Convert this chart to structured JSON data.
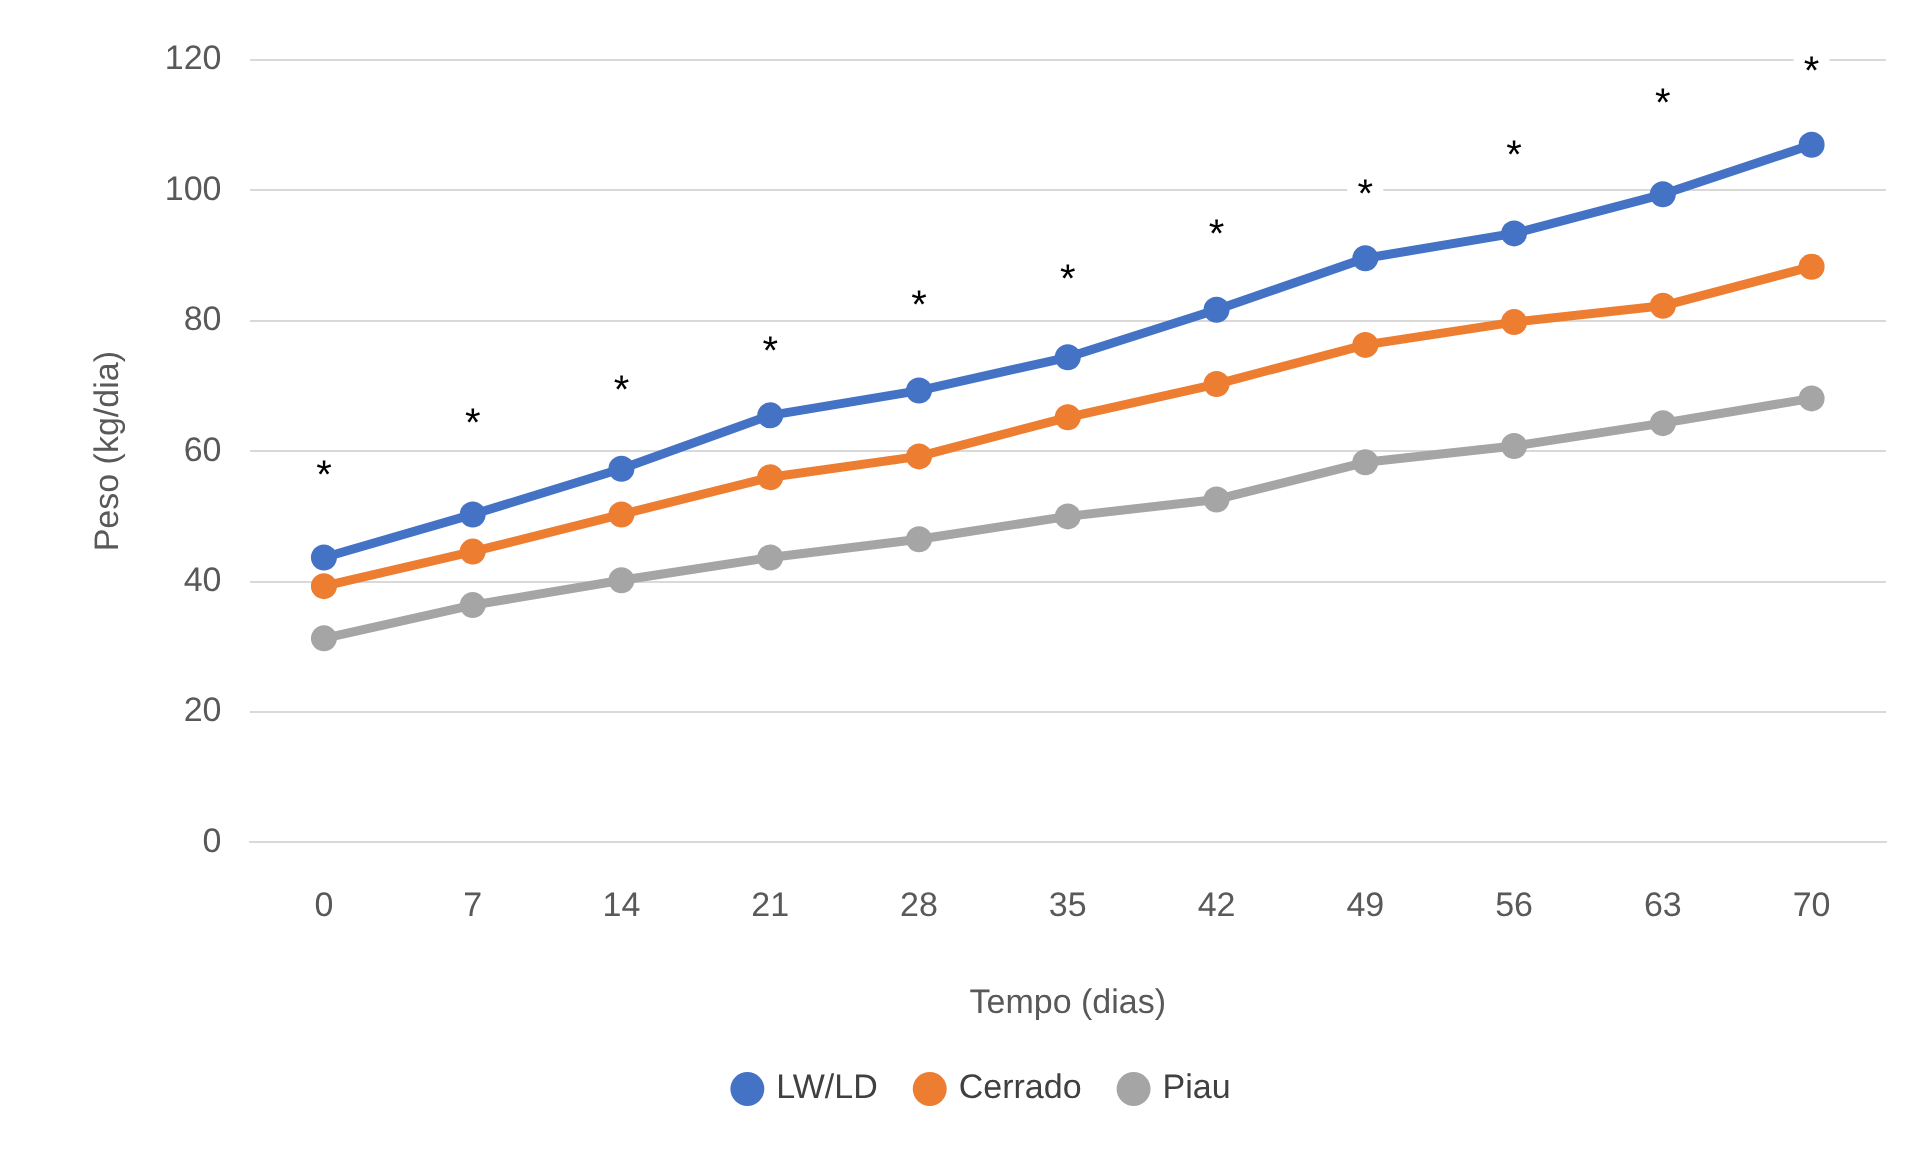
{
  "chart_data": {
    "type": "line",
    "xlabel": "Tempo (dias)",
    "ylabel": "Peso (kg/dia)",
    "categories": [
      "0",
      "7",
      "14",
      "21",
      "28",
      "35",
      "42",
      "49",
      "56",
      "63",
      "70"
    ],
    "series": [
      {
        "name": "LW/LD",
        "color": "#4472c4",
        "values": [
          43.7,
          50.3,
          57.3,
          65.5,
          69.3,
          74.4,
          81.7,
          89.6,
          93.4,
          99.4,
          107
        ]
      },
      {
        "name": "Cerrado",
        "color": "#ed7d31",
        "values": [
          39.3,
          44.6,
          50.3,
          56,
          59.2,
          65.2,
          70.3,
          76.3,
          79.8,
          82.3,
          88.3
        ]
      },
      {
        "name": "Piau",
        "color": "#a5a5a5",
        "values": [
          31.3,
          36.4,
          40.2,
          43.7,
          46.5,
          50,
          52.6,
          58.3,
          60.8,
          64.3,
          68.1
        ]
      }
    ],
    "ylim": [
      0,
      120
    ],
    "yticks": [
      0,
      20,
      40,
      60,
      80,
      100,
      120
    ],
    "grid": "y",
    "legend": "bottom",
    "marker": "circle",
    "line_style": "solid",
    "annotations": [
      {
        "text": "*",
        "x": "0",
        "y": 57
      },
      {
        "text": "*",
        "x": "7",
        "y": 65
      },
      {
        "text": "*",
        "x": "14",
        "y": 70
      },
      {
        "text": "*",
        "x": "21",
        "y": 76
      },
      {
        "text": "*",
        "x": "28",
        "y": 83
      },
      {
        "text": "*",
        "x": "35",
        "y": 87
      },
      {
        "text": "*",
        "x": "42",
        "y": 94
      },
      {
        "text": "*",
        "x": "49",
        "y": 100
      },
      {
        "text": "*",
        "x": "56",
        "y": 106
      },
      {
        "text": "*",
        "x": "63",
        "y": 114
      },
      {
        "text": "*",
        "x": "70",
        "y": 119
      }
    ]
  }
}
